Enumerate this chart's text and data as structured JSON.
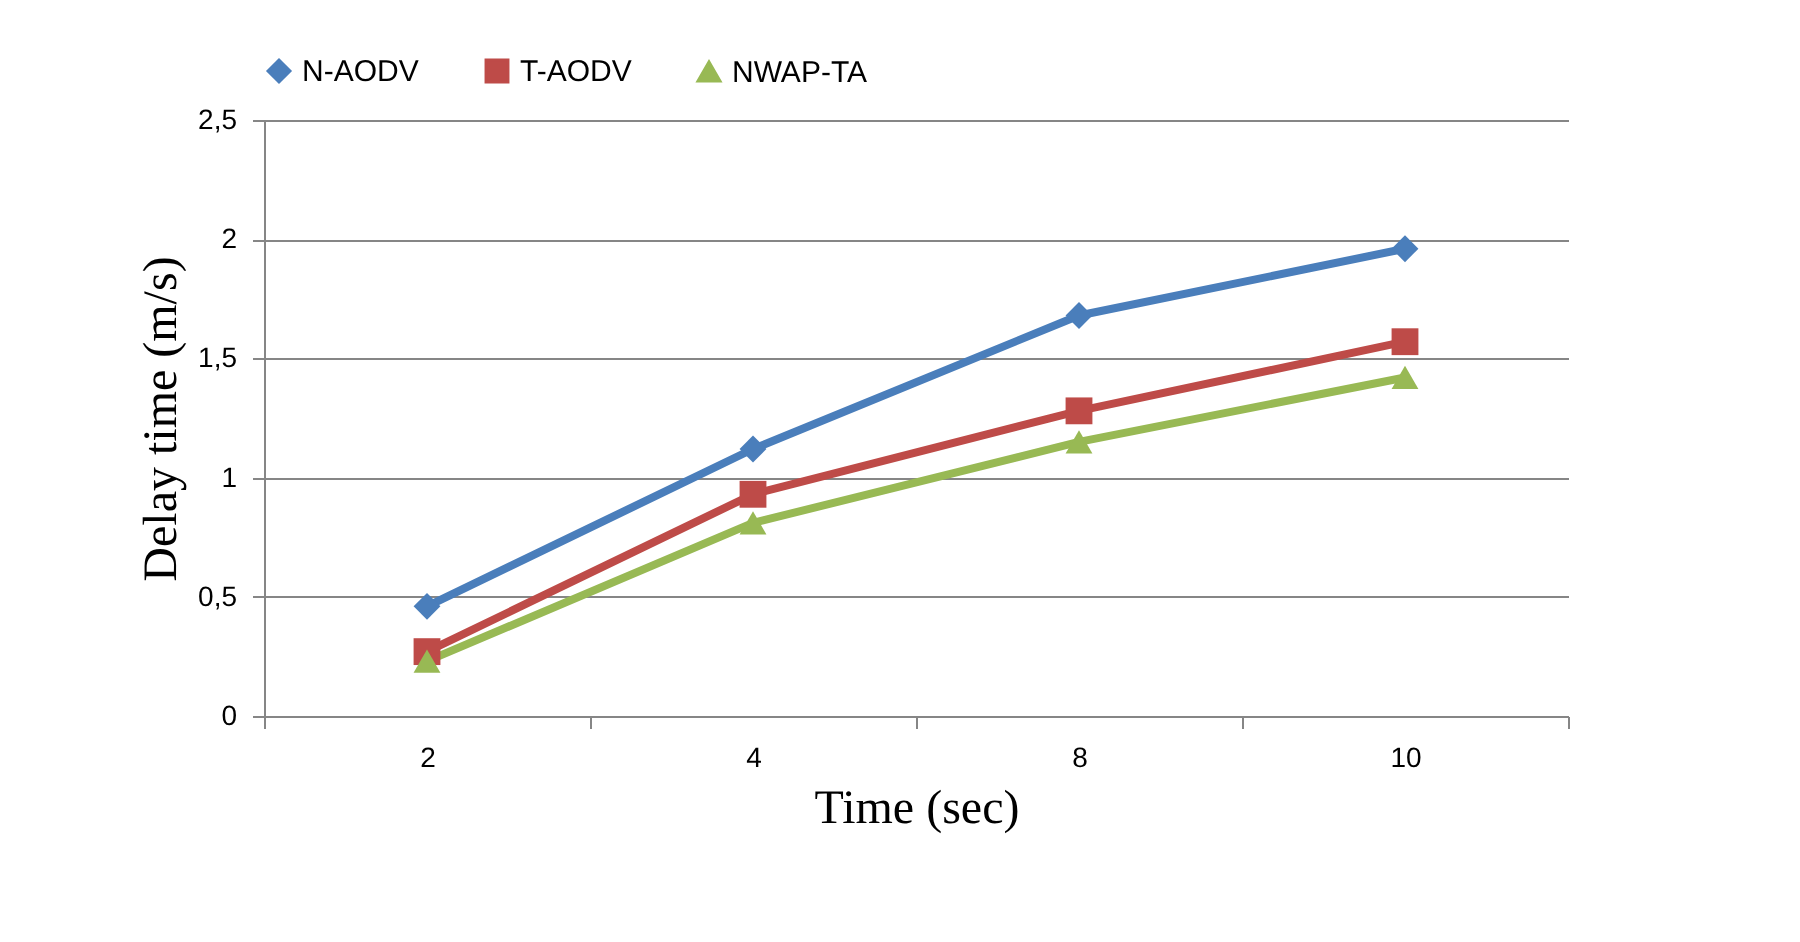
{
  "chart_data": {
    "type": "line",
    "xlabel": "Time (sec)",
    "ylabel": "Delay time (m/s)",
    "categories": [
      "2",
      "4",
      "8",
      "10"
    ],
    "series": [
      {
        "name": "N-AODV",
        "color": "#4a7ebb",
        "marker": "diamond",
        "values": [
          0.46,
          1.12,
          1.68,
          1.96
        ]
      },
      {
        "name": "T-AODV",
        "color": "#be4b48",
        "marker": "square",
        "values": [
          0.27,
          0.93,
          1.28,
          1.57
        ]
      },
      {
        "name": "NWAP-TA",
        "color": "#98b954",
        "marker": "triangle",
        "values": [
          0.23,
          0.81,
          1.15,
          1.42
        ]
      }
    ],
    "ylim": [
      0,
      2.5
    ],
    "yticks": [
      0,
      {
        "value": 0.5,
        "label": "0,5"
      },
      1,
      {
        "value": 1.5,
        "label": "1,5"
      },
      2,
      {
        "value": 2.5,
        "label": "2,5"
      }
    ],
    "grid": "y",
    "legend": "top"
  }
}
